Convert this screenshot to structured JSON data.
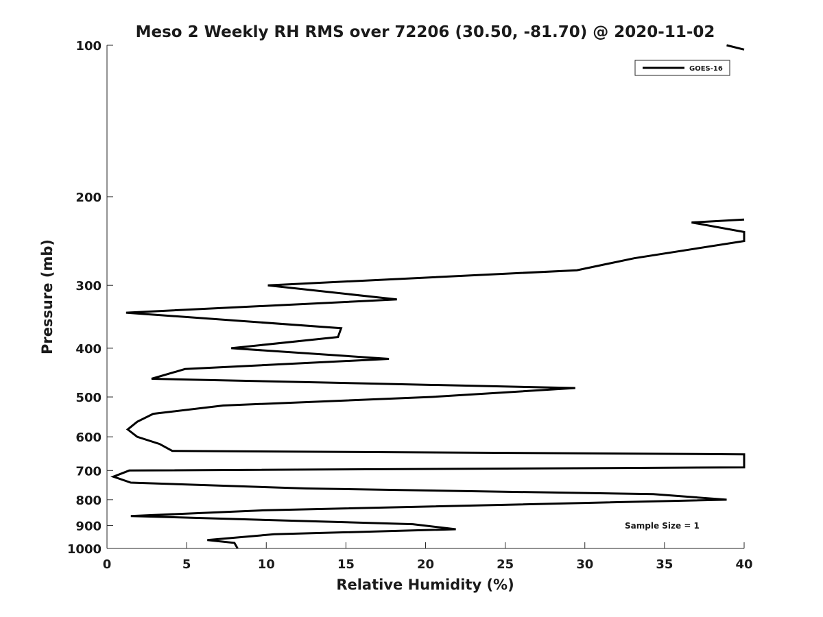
{
  "chart_data": {
    "type": "line",
    "title": "Meso 2 Weekly RH RMS over 72206 (30.50, -81.70) @ 2020-11-02",
    "xlabel": "Relative Humidity (%)",
    "ylabel": "Pressure (mb)",
    "xlim": [
      0,
      40
    ],
    "ylim": [
      1000,
      100
    ],
    "y_scale": "log",
    "y_inverted": true,
    "xticks": [
      "0",
      "5",
      "10",
      "15",
      "20",
      "25",
      "30",
      "35",
      "40"
    ],
    "yticks": [
      "100",
      "200",
      "300",
      "400",
      "500",
      "600",
      "700",
      "800",
      "900",
      "1000"
    ],
    "grid": false,
    "legend_position": "top-right",
    "series": [
      {
        "name": "GOES-16",
        "color": "#000000",
        "points": [
          {
            "x": 8.2,
            "y": 1000
          },
          {
            "x": 8.0,
            "y": 975
          },
          {
            "x": 6.3,
            "y": 962
          },
          {
            "x": 10.5,
            "y": 937
          },
          {
            "x": 21.9,
            "y": 916
          },
          {
            "x": 19.2,
            "y": 895
          },
          {
            "x": 1.5,
            "y": 862
          },
          {
            "x": 9.8,
            "y": 840
          },
          {
            "x": 38.9,
            "y": 800
          },
          {
            "x": 34.3,
            "y": 780
          },
          {
            "x": 12.5,
            "y": 760
          },
          {
            "x": 1.5,
            "y": 740
          },
          {
            "x": 0.4,
            "y": 720
          },
          {
            "x": 1.4,
            "y": 700
          },
          {
            "x": 40.0,
            "y": 690
          },
          {
            "x": 40.0,
            "y": 650
          },
          {
            "x": 4.1,
            "y": 640
          },
          {
            "x": 3.3,
            "y": 620
          },
          {
            "x": 1.9,
            "y": 600
          },
          {
            "x": 1.3,
            "y": 580
          },
          {
            "x": 1.9,
            "y": 560
          },
          {
            "x": 2.9,
            "y": 540
          },
          {
            "x": 7.3,
            "y": 520
          },
          {
            "x": 20.4,
            "y": 500
          },
          {
            "x": 29.4,
            "y": 480
          },
          {
            "x": 2.8,
            "y": 460
          },
          {
            "x": 4.9,
            "y": 440
          },
          {
            "x": 17.7,
            "y": 420
          },
          {
            "x": 7.8,
            "y": 400
          },
          {
            "x": 14.5,
            "y": 380
          },
          {
            "x": 14.7,
            "y": 365
          },
          {
            "x": 1.2,
            "y": 340
          },
          {
            "x": 18.2,
            "y": 320
          },
          {
            "x": 10.1,
            "y": 300
          },
          {
            "x": 29.5,
            "y": 280
          },
          {
            "x": 33.1,
            "y": 265
          },
          {
            "x": 40.0,
            "y": 245
          },
          {
            "x": 40.0,
            "y": 235
          },
          {
            "x": 36.7,
            "y": 225
          },
          {
            "x": 40.0,
            "y": 222
          }
        ]
      },
      {
        "name": "GOES-16",
        "color": "#000000",
        "points": [
          {
            "x": 38.9,
            "y": 100
          },
          {
            "x": 40.0,
            "y": 102
          }
        ]
      }
    ],
    "annotations": [
      {
        "text": "Sample Size = 1"
      }
    ]
  }
}
